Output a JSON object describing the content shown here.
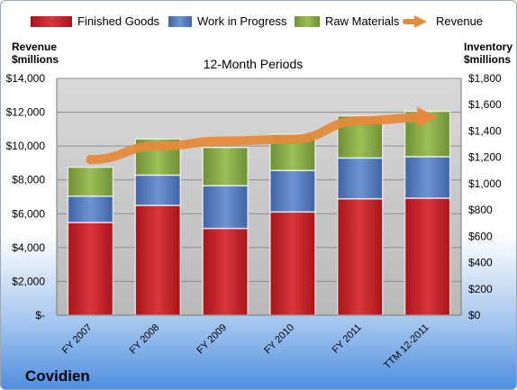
{
  "chart_data": {
    "type": "bar",
    "stacked": true,
    "title": "12-Month Periods",
    "company": "Covidien",
    "categories": [
      "FY 2007",
      "FY 2008",
      "FY 2009",
      "FY 2010",
      "FY 2011",
      "TTM 12-2011"
    ],
    "left_axis_title": [
      "Revenue",
      "$millions"
    ],
    "right_axis_title": [
      "Inventory",
      "$millions"
    ],
    "left_ticks": [
      "$-",
      "$2,000",
      "$4,000",
      "$6,000",
      "$8,000",
      "$10,000",
      "$12,000",
      "$14,000"
    ],
    "right_ticks": [
      "$0",
      "$200",
      "$400",
      "$600",
      "$800",
      "$1,000",
      "$1,200",
      "$1,400",
      "$1,600",
      "$1,800"
    ],
    "ylim_left": [
      0,
      14000
    ],
    "ylim_right": [
      0,
      1800
    ],
    "grid": true,
    "legend_position": "top",
    "series": [
      {
        "name": "Finished Goods",
        "axis": "right",
        "kind": "bar",
        "color": "#c0272d",
        "values": [
          705,
          835,
          660,
          785,
          885,
          890
        ]
      },
      {
        "name": "Work in Progress",
        "axis": "right",
        "kind": "bar",
        "color": "#5b81c4",
        "values": [
          200,
          230,
          325,
          315,
          310,
          315
        ]
      },
      {
        "name": "Raw Materials",
        "axis": "right",
        "kind": "bar",
        "color": "#8eb04c",
        "values": [
          220,
          275,
          290,
          275,
          320,
          345
        ]
      },
      {
        "name": "Revenue",
        "axis": "left",
        "kind": "line",
        "color": "#e58a3c",
        "values": [
          9200,
          10000,
          10300,
          10400,
          11500,
          11700
        ]
      }
    ]
  }
}
